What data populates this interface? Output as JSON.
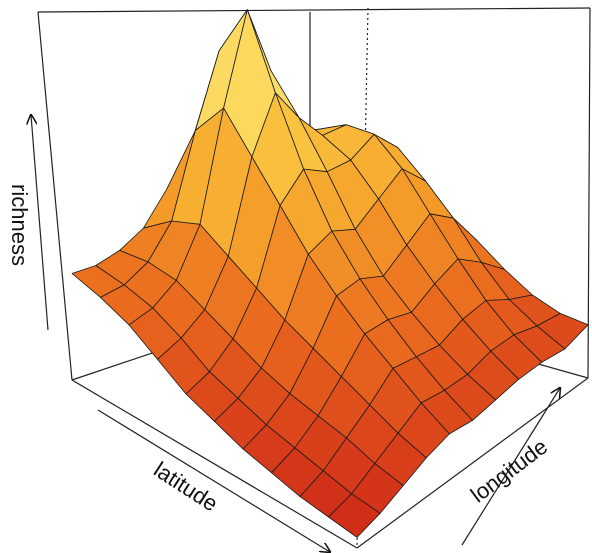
{
  "chart_data": {
    "type": "surface",
    "zlabel": "richness",
    "xlabel": "latitude",
    "ylabel": "longitude",
    "colormap": [
      "#cf2a18",
      "#ea6a1e",
      "#f6a52c",
      "#fbd24a",
      "#fff6b4"
    ],
    "z": [
      [
        0.3,
        0.3,
        0.32,
        0.36,
        0.45,
        0.55,
        0.5,
        0.4,
        0.35,
        0.3,
        0.25
      ],
      [
        0.28,
        0.29,
        0.33,
        0.42,
        0.65,
        0.85,
        0.7,
        0.5,
        0.45,
        0.4,
        0.33
      ],
      [
        0.25,
        0.27,
        0.32,
        0.45,
        0.75,
        1.0,
        0.8,
        0.6,
        0.58,
        0.52,
        0.4
      ],
      [
        0.2,
        0.23,
        0.28,
        0.4,
        0.65,
        0.8,
        0.7,
        0.62,
        0.62,
        0.56,
        0.42
      ],
      [
        0.15,
        0.18,
        0.24,
        0.35,
        0.55,
        0.62,
        0.58,
        0.58,
        0.62,
        0.55,
        0.4
      ],
      [
        0.12,
        0.15,
        0.2,
        0.3,
        0.45,
        0.48,
        0.45,
        0.5,
        0.55,
        0.48,
        0.35
      ],
      [
        0.09,
        0.12,
        0.17,
        0.26,
        0.37,
        0.38,
        0.35,
        0.4,
        0.45,
        0.4,
        0.3
      ],
      [
        0.07,
        0.1,
        0.15,
        0.22,
        0.3,
        0.3,
        0.28,
        0.32,
        0.35,
        0.3,
        0.24
      ],
      [
        0.05,
        0.08,
        0.13,
        0.18,
        0.24,
        0.23,
        0.22,
        0.25,
        0.26,
        0.22,
        0.19
      ],
      [
        0.04,
        0.06,
        0.1,
        0.14,
        0.18,
        0.17,
        0.17,
        0.19,
        0.19,
        0.17,
        0.16
      ],
      [
        0.03,
        0.05,
        0.08,
        0.11,
        0.13,
        0.12,
        0.13,
        0.14,
        0.14,
        0.13,
        0.15
      ]
    ]
  }
}
